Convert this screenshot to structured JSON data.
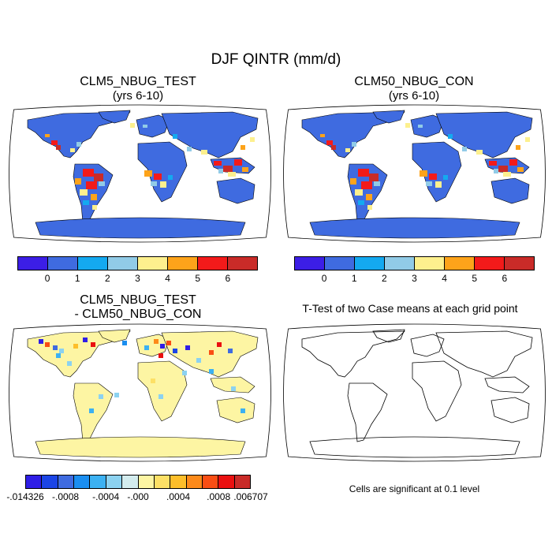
{
  "figure": {
    "title": "DJF QINTR (mm/d)"
  },
  "panels": {
    "test": {
      "title": "CLM5_NBUG_TEST",
      "subtitle": "(yrs 6-10)"
    },
    "control": {
      "title": "CLM50_NBUG_CON",
      "subtitle": "(yrs 6-10)"
    },
    "diff": {
      "title": "CLM5_NBUG_TEST",
      "subtitle": "- CLM50_NBUG_CON"
    },
    "ttest": {
      "title": "T-Test of two Case means at each grid point",
      "note": "Cells are significant at 0.1 level"
    }
  },
  "colorbars": {
    "abs": {
      "colors": [
        "#3c1ee6",
        "#3f6be0",
        "#14a9f0",
        "#91cbe7",
        "#fdf08e",
        "#fda31a",
        "#f31a1a",
        "#c92b28"
      ],
      "labels": [
        "0",
        "1",
        "2",
        "3",
        "4",
        "5",
        "6"
      ]
    },
    "diff": {
      "colors": [
        "#2f1ee6",
        "#1b45e6",
        "#3f6be0",
        "#1a8ef0",
        "#3cb1f2",
        "#8cd2f0",
        "#d3ecee",
        "#fdf5a3",
        "#fde066",
        "#fdbe2a",
        "#fd8a1a",
        "#fa4e14",
        "#ea1010",
        "#c92b28"
      ],
      "labels": [
        "-.014326",
        "-.0008",
        "-.0004",
        "-.000",
        ".0004",
        ".0008",
        ".006707"
      ]
    }
  },
  "colors": {
    "ocean": "#ffffff",
    "land_base_abs": "#3f6be0",
    "land_base_diff": "#fdf5a3",
    "coast": "#000000"
  }
}
